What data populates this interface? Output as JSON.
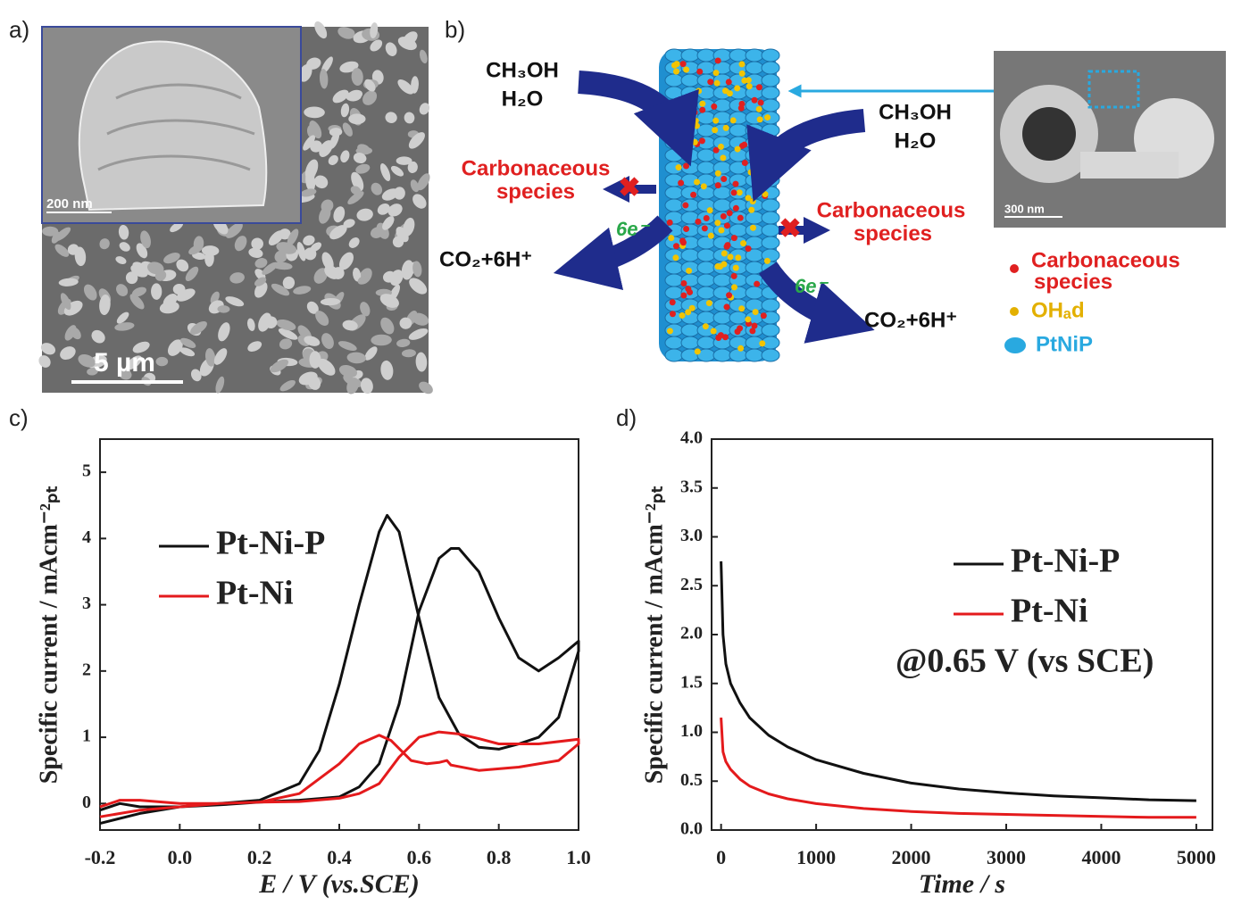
{
  "panel_a": {
    "label": "a)",
    "inset_scale": "200 nm",
    "scale": "5 µm"
  },
  "panel_b": {
    "label": "b)",
    "feed_left": [
      "CH₃OH",
      "H₂O"
    ],
    "feed_right": [
      "CH₃OH",
      "H₂O"
    ],
    "poison_left": [
      "Carbonaceous",
      "species"
    ],
    "poison_right": [
      "Carbonaceous",
      "species"
    ],
    "electrons_left": "6e⁻",
    "electrons_right": "6e⁻",
    "product_left": "CO₂+6H⁺",
    "product_right": "CO₂+6H⁺",
    "inset_scale": "300 nm",
    "legend": [
      "Carbonaceous",
      "species",
      "OHₐd",
      "PtNiP"
    ]
  },
  "chart_data": [
    {
      "type": "line",
      "panel": "c)",
      "xlabel": "E / V (vs.SCE)",
      "ylabel": "Specific current / mAcm⁻²ₚₜ",
      "xlim": [
        -0.2,
        1.0
      ],
      "xticks": [
        -0.2,
        {
          "value": 0,
          "label": "0.0"
        },
        0.2,
        0.4,
        0.6,
        0.8,
        {
          "value": 1,
          "label": "1.0"
        }
      ],
      "ylim": [
        -0.4,
        5.5
      ],
      "yticks": [
        0,
        1,
        2,
        3,
        4,
        5
      ],
      "legend": "upper left",
      "series": [
        {
          "name": "Pt-Ni-P",
          "color": "#111111",
          "x": [
            -0.2,
            -0.1,
            0.0,
            0.1,
            0.2,
            0.3,
            0.35,
            0.4,
            0.45,
            0.5,
            0.52,
            0.55,
            0.6,
            0.65,
            0.7,
            0.75,
            0.8,
            0.85,
            0.9,
            0.95,
            1.0,
            1.0,
            0.95,
            0.9,
            0.85,
            0.8,
            0.75,
            0.7,
            0.68,
            0.65,
            0.6,
            0.55,
            0.5,
            0.45,
            0.4,
            0.3,
            0.2,
            0.1,
            0.0,
            -0.1,
            -0.15,
            -0.2
          ],
          "values": [
            -0.3,
            -0.15,
            -0.05,
            0.0,
            0.05,
            0.3,
            0.8,
            1.8,
            3.0,
            4.1,
            4.35,
            4.1,
            2.8,
            1.6,
            1.05,
            0.85,
            0.82,
            0.9,
            1.0,
            1.3,
            2.3,
            2.45,
            2.2,
            2.0,
            2.2,
            2.8,
            3.5,
            3.85,
            3.85,
            3.7,
            2.9,
            1.5,
            0.6,
            0.25,
            0.1,
            0.05,
            0.02,
            -0.02,
            -0.05,
            -0.05,
            0.0,
            -0.1
          ]
        },
        {
          "name": "Pt-Ni",
          "color": "#e41a1c",
          "x": [
            -0.2,
            -0.1,
            0.0,
            0.1,
            0.2,
            0.3,
            0.4,
            0.45,
            0.5,
            0.53,
            0.58,
            0.62,
            0.65,
            0.67,
            0.68,
            0.75,
            0.85,
            0.95,
            1.0,
            1.0,
            0.9,
            0.8,
            0.75,
            0.7,
            0.65,
            0.6,
            0.55,
            0.5,
            0.45,
            0.4,
            0.3,
            0.2,
            0.1,
            0.0,
            -0.1,
            -0.15,
            -0.2
          ],
          "values": [
            -0.2,
            -0.1,
            -0.05,
            0.0,
            0.02,
            0.15,
            0.6,
            0.9,
            1.03,
            0.95,
            0.65,
            0.6,
            0.62,
            0.65,
            0.58,
            0.5,
            0.55,
            0.65,
            0.9,
            0.97,
            0.9,
            0.9,
            0.98,
            1.05,
            1.08,
            1.0,
            0.7,
            0.3,
            0.15,
            0.08,
            0.03,
            0.02,
            0.0,
            0.0,
            0.05,
            0.05,
            -0.05
          ]
        }
      ]
    },
    {
      "type": "line",
      "panel": "d)",
      "xlabel": "Time / s",
      "ylabel": "Specific current / mAcm⁻²ₚₜ",
      "annotation": "@0.65 V (vs SCE)",
      "xlim": [
        -100,
        5170
      ],
      "xticks": [
        0,
        1000,
        2000,
        3000,
        4000,
        5000
      ],
      "ylim": [
        0,
        4.0
      ],
      "yticks": [
        {
          "value": 0,
          "label": "0.0"
        },
        0.5,
        {
          "value": 1,
          "label": "1.0"
        },
        1.5,
        {
          "value": 2,
          "label": "2.0"
        },
        2.5,
        {
          "value": 3,
          "label": "3.0"
        },
        3.5,
        {
          "value": 4,
          "label": "4.0"
        }
      ],
      "legend": "center right",
      "series": [
        {
          "name": "Pt-Ni-P",
          "color": "#111111",
          "x": [
            0,
            20,
            50,
            100,
            200,
            300,
            500,
            700,
            1000,
            1500,
            2000,
            2500,
            3000,
            3500,
            4000,
            4500,
            5000
          ],
          "values": [
            2.75,
            2.0,
            1.7,
            1.5,
            1.3,
            1.15,
            0.97,
            0.85,
            0.72,
            0.58,
            0.48,
            0.42,
            0.38,
            0.35,
            0.33,
            0.31,
            0.3
          ]
        },
        {
          "name": "Pt-Ni",
          "color": "#e41a1c",
          "x": [
            0,
            20,
            50,
            100,
            200,
            300,
            500,
            700,
            1000,
            1500,
            2000,
            2500,
            3000,
            3500,
            4000,
            4500,
            5000
          ],
          "values": [
            1.15,
            0.8,
            0.7,
            0.62,
            0.52,
            0.45,
            0.37,
            0.32,
            0.27,
            0.22,
            0.19,
            0.17,
            0.16,
            0.15,
            0.14,
            0.13,
            0.13
          ]
        }
      ]
    }
  ]
}
